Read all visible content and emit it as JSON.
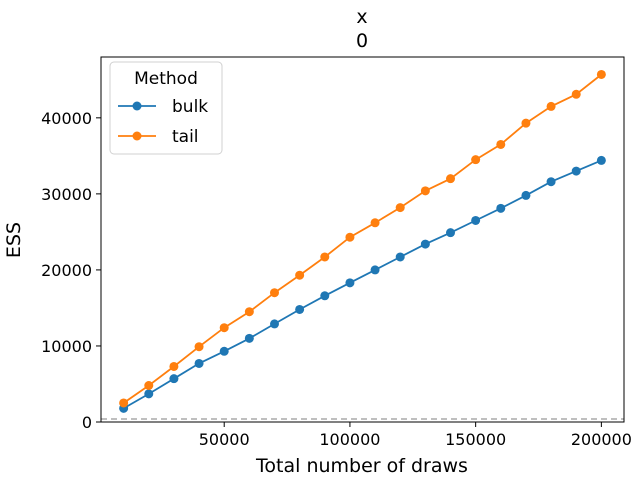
{
  "chart_data": {
    "type": "line",
    "title": "x",
    "subtitle": "0",
    "xlabel": "Total number of draws",
    "ylabel": "ESS",
    "xlim": [
      1000,
      209000
    ],
    "ylim": [
      0,
      48000
    ],
    "xticks": [
      50000,
      100000,
      150000,
      200000
    ],
    "yticks": [
      0,
      10000,
      20000,
      30000,
      40000
    ],
    "grid": false,
    "legend": {
      "title": "Method",
      "position": "top-left"
    },
    "x": [
      10000,
      20000,
      30000,
      40000,
      50000,
      60000,
      70000,
      80000,
      90000,
      100000,
      110000,
      120000,
      130000,
      140000,
      150000,
      160000,
      170000,
      180000,
      190000,
      200000
    ],
    "series": [
      {
        "name": "bulk",
        "color": "#1f77b4",
        "values": [
          1800,
          3700,
          5700,
          7700,
          9300,
          11000,
          12900,
          14800,
          16600,
          18300,
          20000,
          21700,
          23400,
          24900,
          26500,
          28100,
          29800,
          31600,
          33000,
          34400
        ]
      },
      {
        "name": "tail",
        "color": "#ff7f0e",
        "values": [
          2500,
          4800,
          7300,
          9900,
          12400,
          14500,
          17000,
          19300,
          21700,
          24300,
          26200,
          28200,
          30400,
          32000,
          34500,
          36500,
          39300,
          41500,
          43100,
          45700
        ]
      }
    ],
    "reference_line": {
      "y": 400,
      "style": "dashed",
      "color": "#aaaaaa"
    }
  }
}
